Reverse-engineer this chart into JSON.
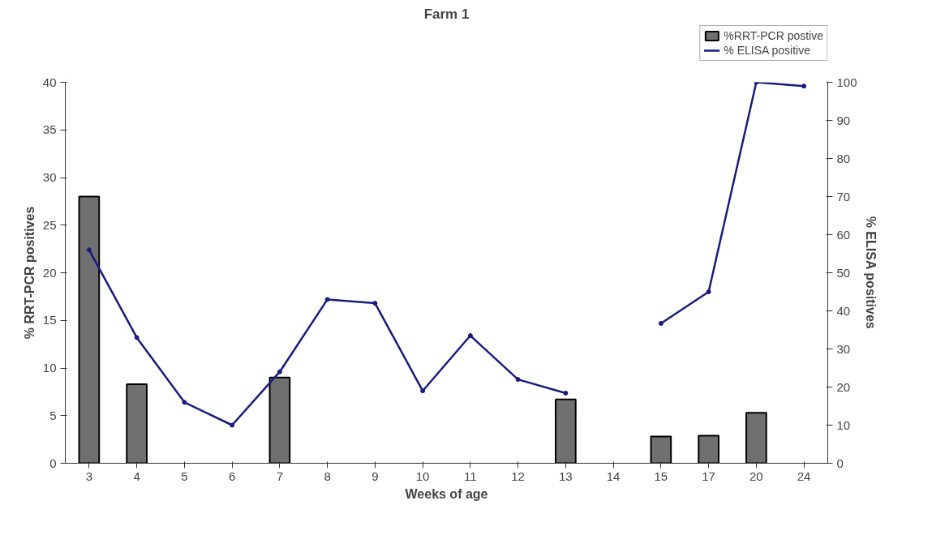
{
  "chart_data": {
    "type": "bar",
    "title": "Farm 1",
    "xlabel": "Weeks of age",
    "ylabel": "% RRT-PCR positives",
    "y2label": "% ELISA positives",
    "categories": [
      "3",
      "4",
      "5",
      "6",
      "7",
      "8",
      "9",
      "10",
      "11",
      "12",
      "13",
      "14",
      "15",
      "17",
      "20",
      "24"
    ],
    "series": [
      {
        "name": "%RRT-PCR postive",
        "color": "#707070",
        "values": [
          28,
          8.3,
          null,
          null,
          9,
          null,
          null,
          null,
          null,
          null,
          6.7,
          null,
          2.8,
          2.9,
          5.3,
          null
        ]
      },
      {
        "name": "% ELISA positive",
        "type": "line",
        "axis": "y2",
        "color": "#1a1a80",
        "values": [
          56,
          33,
          16,
          10,
          24,
          43,
          42,
          19,
          33.5,
          22,
          18.4,
          null,
          36.7,
          45,
          100,
          99
        ]
      }
    ],
    "ylim": [
      0,
      40
    ],
    "yticks": [
      0,
      5,
      10,
      15,
      20,
      25,
      30,
      35,
      40
    ],
    "y2lim": [
      0,
      100
    ],
    "y2ticks": [
      0,
      10,
      20,
      30,
      40,
      50,
      60,
      70,
      80,
      90,
      100
    ],
    "grid": false,
    "legend": "top right",
    "marker": "circle",
    "line_style": "solid"
  }
}
